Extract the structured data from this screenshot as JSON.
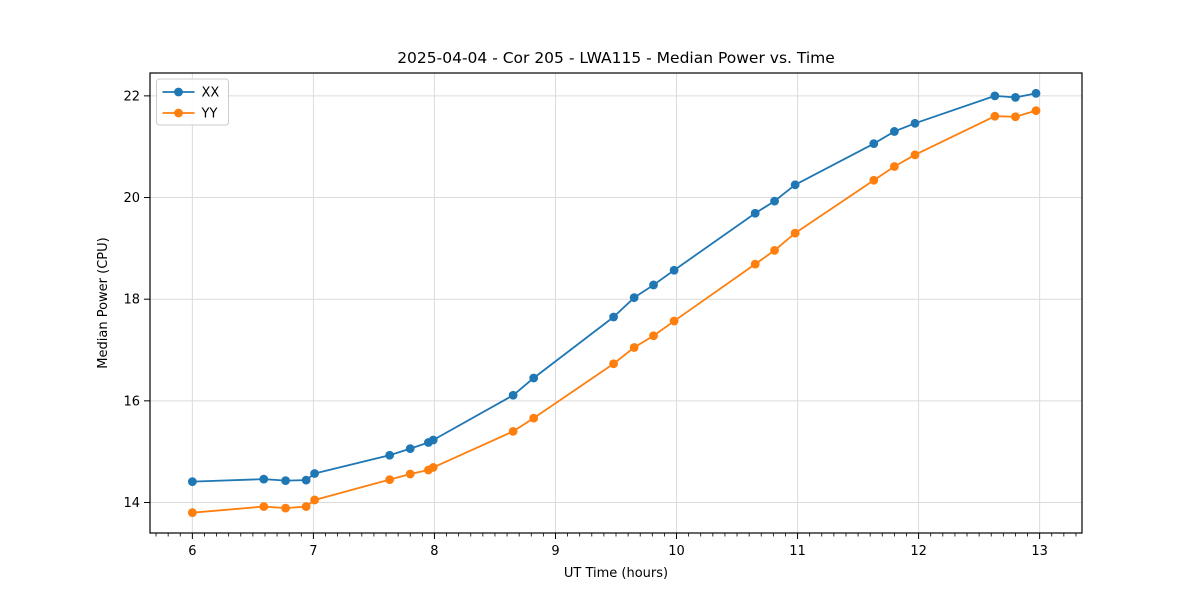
{
  "chart_data": {
    "type": "line",
    "title": "2025-04-04 - Cor 205 - LWA115 - Median Power vs. Time",
    "xlabel": "UT Time (hours)",
    "ylabel": "Median Power (CPU)",
    "xlim": [
      5.65,
      13.35
    ],
    "ylim": [
      13.4,
      22.45
    ],
    "xticks": [
      6,
      7,
      8,
      9,
      10,
      11,
      12,
      13
    ],
    "yticks": [
      14,
      16,
      18,
      20,
      22
    ],
    "x_minor_tick_step": 0.1,
    "grid": true,
    "legend_position": "upper-left",
    "legend_entries": [
      "XX",
      "YY"
    ],
    "colors": {
      "XX": "#1f77b4",
      "YY": "#ff7f0e",
      "grid": "#dcdcdc",
      "spine": "#000000",
      "legend_border": "#cccccc"
    },
    "x": [
      6.0,
      6.59,
      6.77,
      6.94,
      7.01,
      7.63,
      7.8,
      7.95,
      7.99,
      8.65,
      8.82,
      9.48,
      9.65,
      9.81,
      9.98,
      10.65,
      10.81,
      10.98,
      11.63,
      11.8,
      11.97,
      12.63,
      12.8,
      12.97
    ],
    "series": [
      {
        "name": "XX",
        "color": "#1f77b4",
        "values": [
          14.41,
          14.46,
          14.43,
          14.44,
          14.57,
          14.93,
          15.06,
          15.18,
          15.23,
          16.11,
          16.45,
          17.65,
          18.03,
          18.28,
          18.57,
          19.69,
          19.93,
          20.25,
          21.06,
          21.3,
          21.46,
          22.0,
          21.97,
          22.05
        ]
      },
      {
        "name": "YY",
        "color": "#ff7f0e",
        "values": [
          13.8,
          13.92,
          13.89,
          13.92,
          14.05,
          14.45,
          14.56,
          14.64,
          14.69,
          15.4,
          15.66,
          16.73,
          17.05,
          17.28,
          17.57,
          18.69,
          18.96,
          19.3,
          20.34,
          20.61,
          20.84,
          21.6,
          21.59,
          21.71
        ]
      }
    ]
  }
}
